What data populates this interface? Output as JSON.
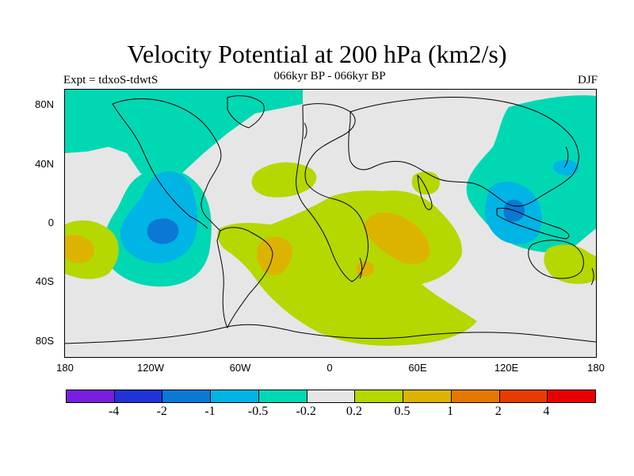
{
  "title": "Velocity Potential at 200 hPa (km2/s)",
  "experiment": "Expt = tdxoS-tdwtS",
  "period": "066kyr BP - 066kyr BP",
  "season": "DJF",
  "map": {
    "lat_ticks": [
      "80N",
      "40N",
      "0",
      "40S",
      "80S"
    ],
    "lon_ticks": [
      "180",
      "120W",
      "60W",
      "0",
      "60E",
      "120E",
      "180"
    ]
  },
  "legend": {
    "colors": [
      "#7a1ee0",
      "#2233d8",
      "#0a78d4",
      "#00b4e6",
      "#00d8b4",
      "#e6e6e6",
      "#b4d800",
      "#dcb400",
      "#e67800",
      "#e63c00",
      "#ea0000"
    ],
    "labels": [
      "-4",
      "-2",
      "-1",
      "-0.5",
      "-0.2",
      "0.2",
      "0.5",
      "1",
      "2",
      "4"
    ]
  }
}
